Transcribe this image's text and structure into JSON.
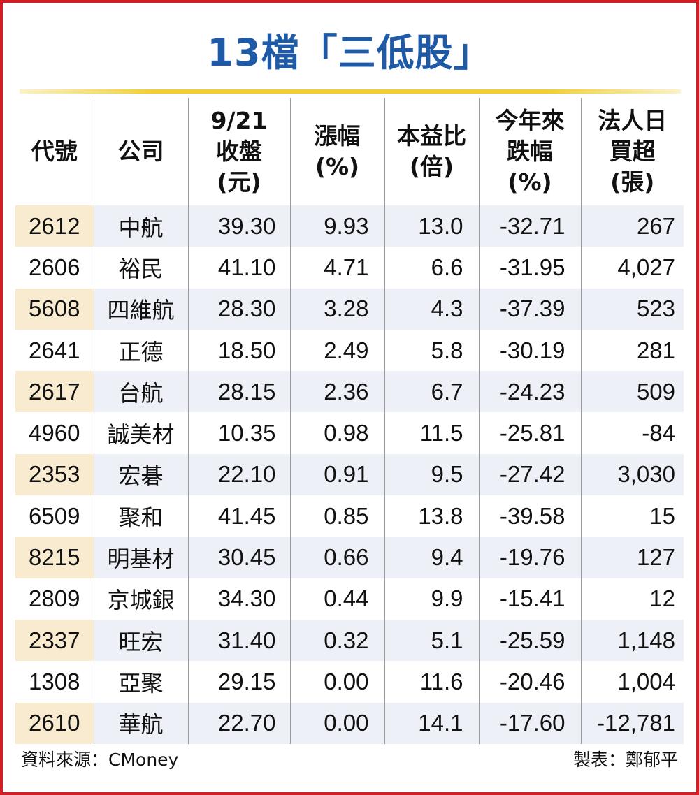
{
  "title": "13檔「三低股」",
  "colors": {
    "title": "#1f5aa6",
    "frame": "#d21f26",
    "rule": "#f0cf36",
    "row_band": "#eef0f7",
    "code_band": "#f9ebcf"
  },
  "headers": [
    [
      "代號"
    ],
    [
      "公司"
    ],
    [
      "9/21",
      "收盤",
      "(元)"
    ],
    [
      "漲幅",
      "(%)"
    ],
    [
      "本益比",
      "(倍)"
    ],
    [
      "今年來",
      "跌幅",
      "(%)"
    ],
    [
      "法人日",
      "買超",
      "(張)"
    ]
  ],
  "chart_data": {
    "type": "table",
    "title": "13檔「三低股」",
    "columns": [
      "代號",
      "公司",
      "9/21收盤(元)",
      "漲幅(%)",
      "本益比(倍)",
      "今年來跌幅(%)",
      "法人日買超(張)"
    ],
    "rows": [
      [
        "2612",
        "中航",
        "39.30",
        "9.93",
        "13.0",
        "-32.71",
        "267"
      ],
      [
        "2606",
        "裕民",
        "41.10",
        "4.71",
        "6.6",
        "-31.95",
        "4,027"
      ],
      [
        "5608",
        "四維航",
        "28.30",
        "3.28",
        "4.3",
        "-37.39",
        "523"
      ],
      [
        "2641",
        "正德",
        "18.50",
        "2.49",
        "5.8",
        "-30.19",
        "281"
      ],
      [
        "2617",
        "台航",
        "28.15",
        "2.36",
        "6.7",
        "-24.23",
        "509"
      ],
      [
        "4960",
        "誠美材",
        "10.35",
        "0.98",
        "11.5",
        "-25.81",
        "-84"
      ],
      [
        "2353",
        "宏碁",
        "22.10",
        "0.91",
        "9.5",
        "-27.42",
        "3,030"
      ],
      [
        "6509",
        "聚和",
        "41.45",
        "0.85",
        "13.8",
        "-39.58",
        "15"
      ],
      [
        "8215",
        "明基材",
        "30.45",
        "0.66",
        "9.4",
        "-19.76",
        "127"
      ],
      [
        "2809",
        "京城銀",
        "34.30",
        "0.44",
        "9.9",
        "-15.41",
        "12"
      ],
      [
        "2337",
        "旺宏",
        "31.40",
        "0.32",
        "5.1",
        "-25.59",
        "1,148"
      ],
      [
        "1308",
        "亞聚",
        "29.15",
        "0.00",
        "11.6",
        "-20.46",
        "1,004"
      ],
      [
        "2610",
        "華航",
        "22.70",
        "0.00",
        "14.1",
        "-17.60",
        "-12,781"
      ]
    ]
  },
  "footer": {
    "source": "資料來源：CMoney",
    "author": "製表：鄭郁平"
  }
}
